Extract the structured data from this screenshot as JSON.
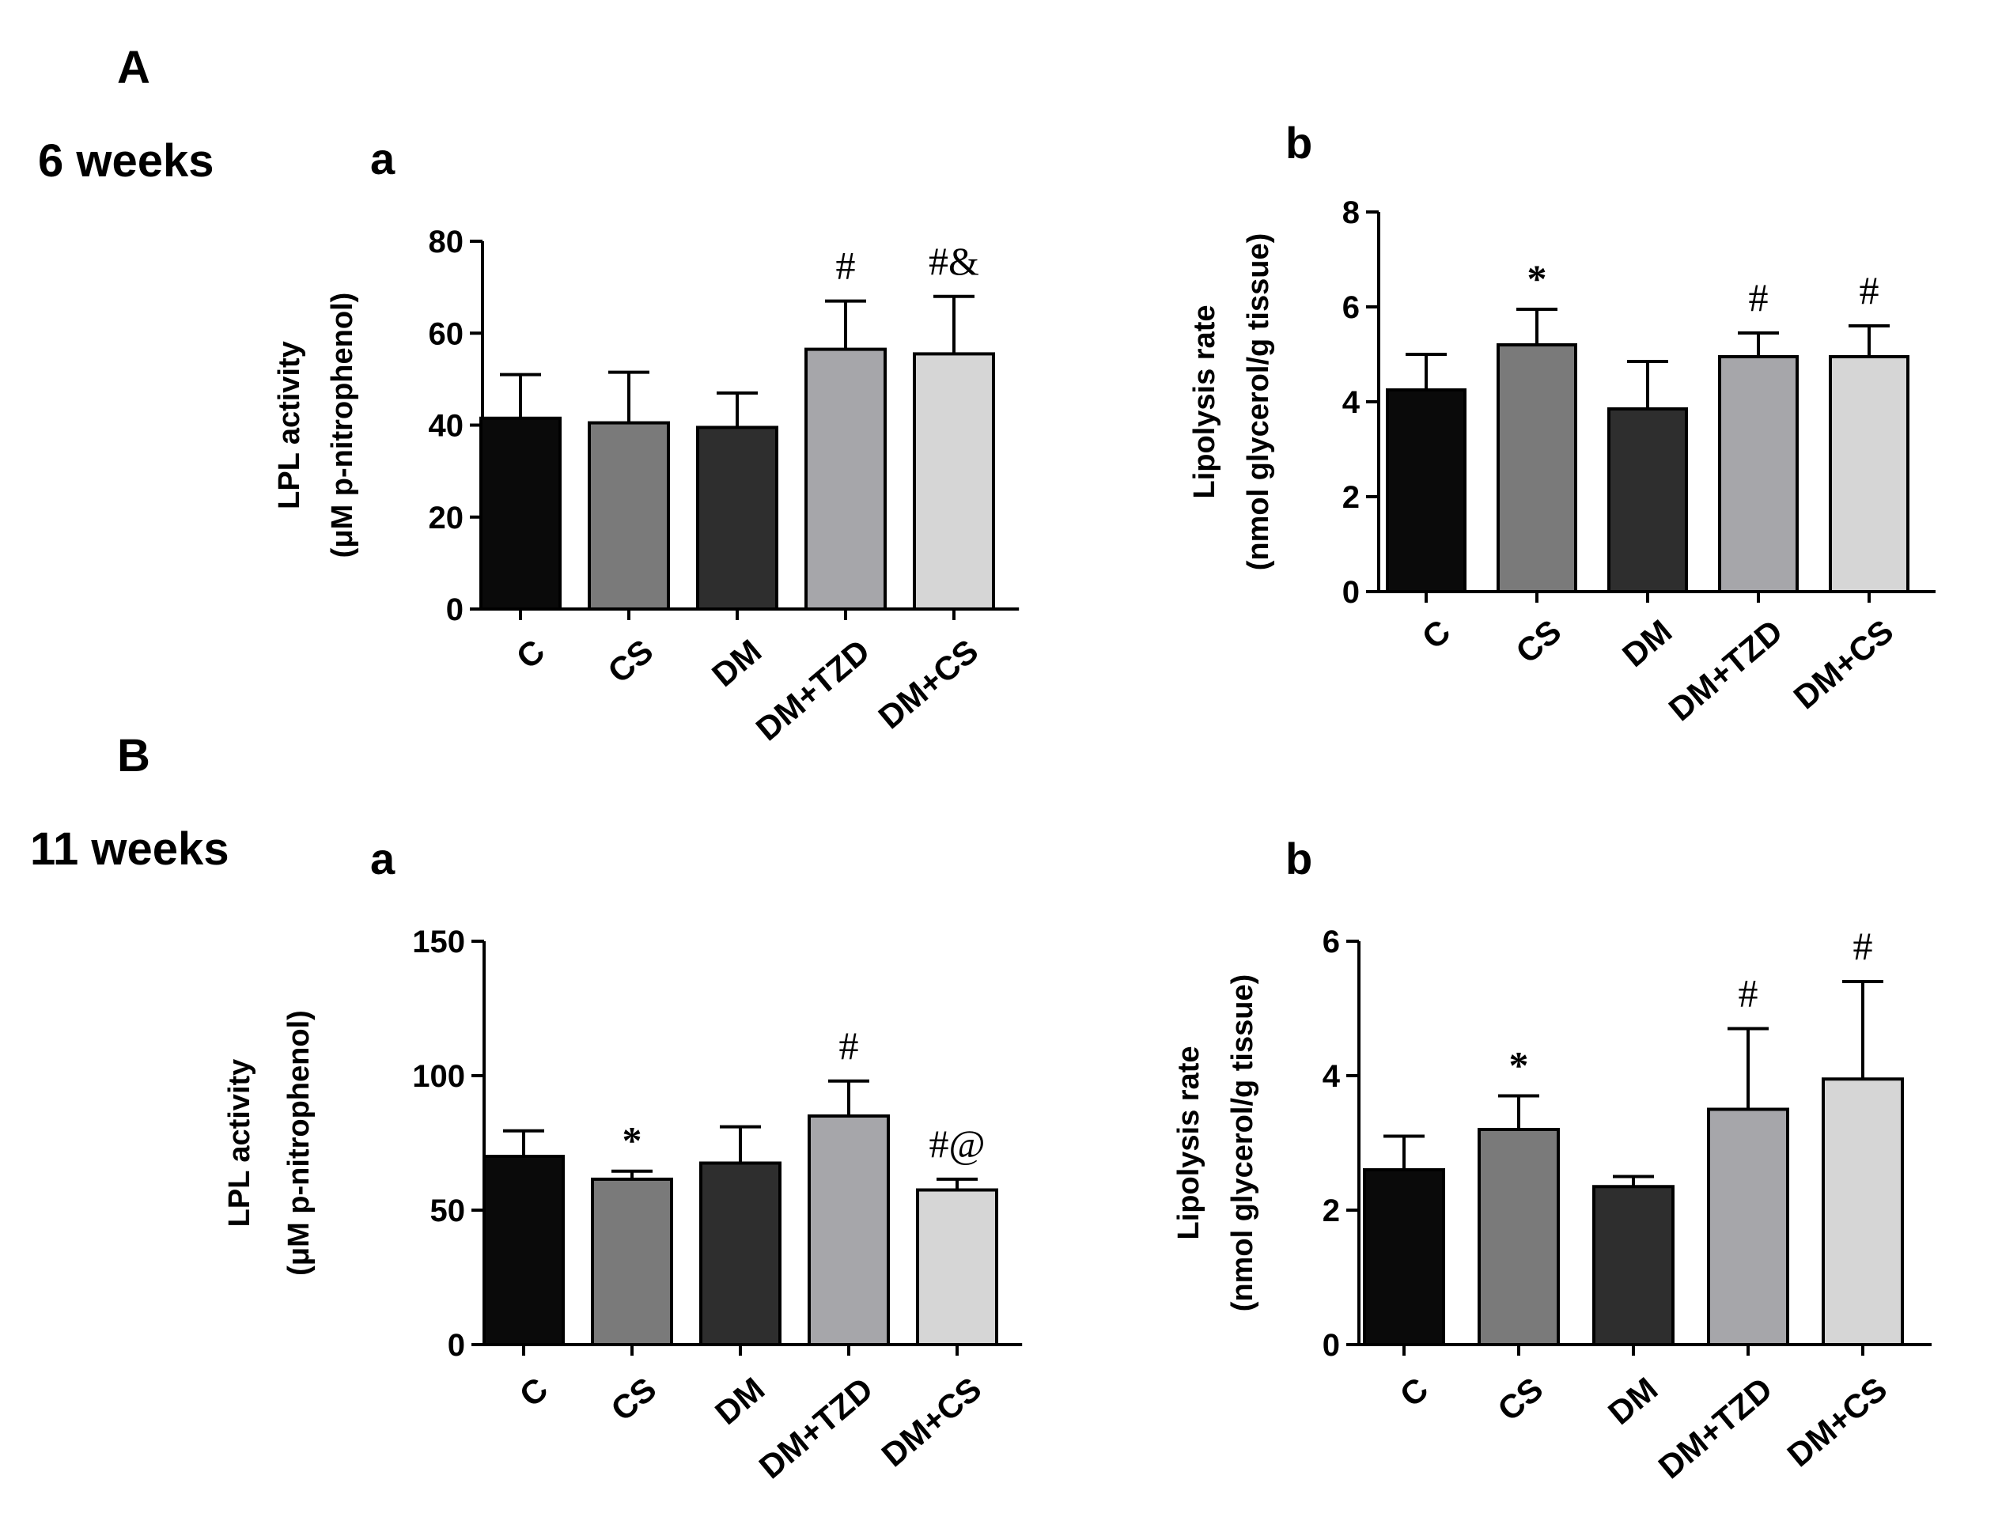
{
  "figure": {
    "section_A": "A",
    "section_B": "B",
    "week_A": "6 weeks",
    "week_B": "11 weeks"
  },
  "chart_data": [
    {
      "id": "Aa",
      "panel": "a",
      "type": "bar",
      "categories": [
        "C",
        "CS",
        "DM",
        "DM+TZD",
        "DM+CS"
      ],
      "values": [
        41.5,
        40.5,
        39.5,
        56.5,
        55.5
      ],
      "errors": [
        9.5,
        11,
        7.5,
        10.5,
        12.5
      ],
      "significance": [
        "",
        "",
        "",
        "#",
        "#&"
      ],
      "colors": [
        "#0a0a0a",
        "#7a7a7a",
        "#2e2e2e",
        "#a6a6aa",
        "#d6d6d6"
      ],
      "ylabel_line1": "LPL activity",
      "ylabel_line2": "(μM p-nitrophenol)",
      "xlabel": "",
      "ylim": [
        0,
        80
      ],
      "yticks": [
        0,
        20,
        40,
        60,
        80
      ]
    },
    {
      "id": "Ab",
      "panel": "b",
      "type": "bar",
      "categories": [
        "C",
        "CS",
        "DM",
        "DM+TZD",
        "DM+CS"
      ],
      "values": [
        4.25,
        5.2,
        3.85,
        4.95,
        4.95
      ],
      "errors": [
        0.75,
        0.75,
        1.0,
        0.5,
        0.65
      ],
      "significance": [
        "",
        "*",
        "",
        "#",
        "#"
      ],
      "colors": [
        "#0a0a0a",
        "#7a7a7a",
        "#2e2e2e",
        "#a6a6aa",
        "#d6d6d6"
      ],
      "ylabel_line1": "Lipolysis rate",
      "ylabel_line2": "(nmol glycerol/g tissue)",
      "xlabel": "",
      "ylim": [
        0,
        8
      ],
      "yticks": [
        0,
        2,
        4,
        6,
        8
      ]
    },
    {
      "id": "Ba",
      "panel": "a",
      "type": "bar",
      "categories": [
        "C",
        "CS",
        "DM",
        "DM+TZD",
        "DM+CS"
      ],
      "values": [
        70,
        61.5,
        67.5,
        85,
        57.5
      ],
      "errors": [
        9.5,
        3,
        13.5,
        13,
        4
      ],
      "significance": [
        "",
        "*",
        "",
        "#",
        "#@"
      ],
      "colors": [
        "#0a0a0a",
        "#7a7a7a",
        "#2e2e2e",
        "#a6a6aa",
        "#d6d6d6"
      ],
      "ylabel_line1": "LPL activity",
      "ylabel_line2": "(μM p-nitrophenol)",
      "xlabel": "",
      "ylim": [
        0,
        150
      ],
      "yticks": [
        0,
        50,
        100,
        150
      ]
    },
    {
      "id": "Bb",
      "panel": "b",
      "type": "bar",
      "categories": [
        "C",
        "CS",
        "DM",
        "DM+TZD",
        "DM+CS"
      ],
      "values": [
        2.6,
        3.2,
        2.35,
        3.5,
        3.95
      ],
      "errors": [
        0.5,
        0.5,
        0.15,
        1.2,
        1.45
      ],
      "significance": [
        "",
        "*",
        "",
        "#",
        "#"
      ],
      "colors": [
        "#0a0a0a",
        "#7a7a7a",
        "#2e2e2e",
        "#a6a6aa",
        "#d6d6d6"
      ],
      "ylabel_line1": "Lipolysis rate",
      "ylabel_line2": "(nmol glycerol/g tissue)",
      "xlabel": "",
      "ylim": [
        0,
        6
      ],
      "yticks": [
        0,
        2,
        4,
        6
      ]
    }
  ]
}
